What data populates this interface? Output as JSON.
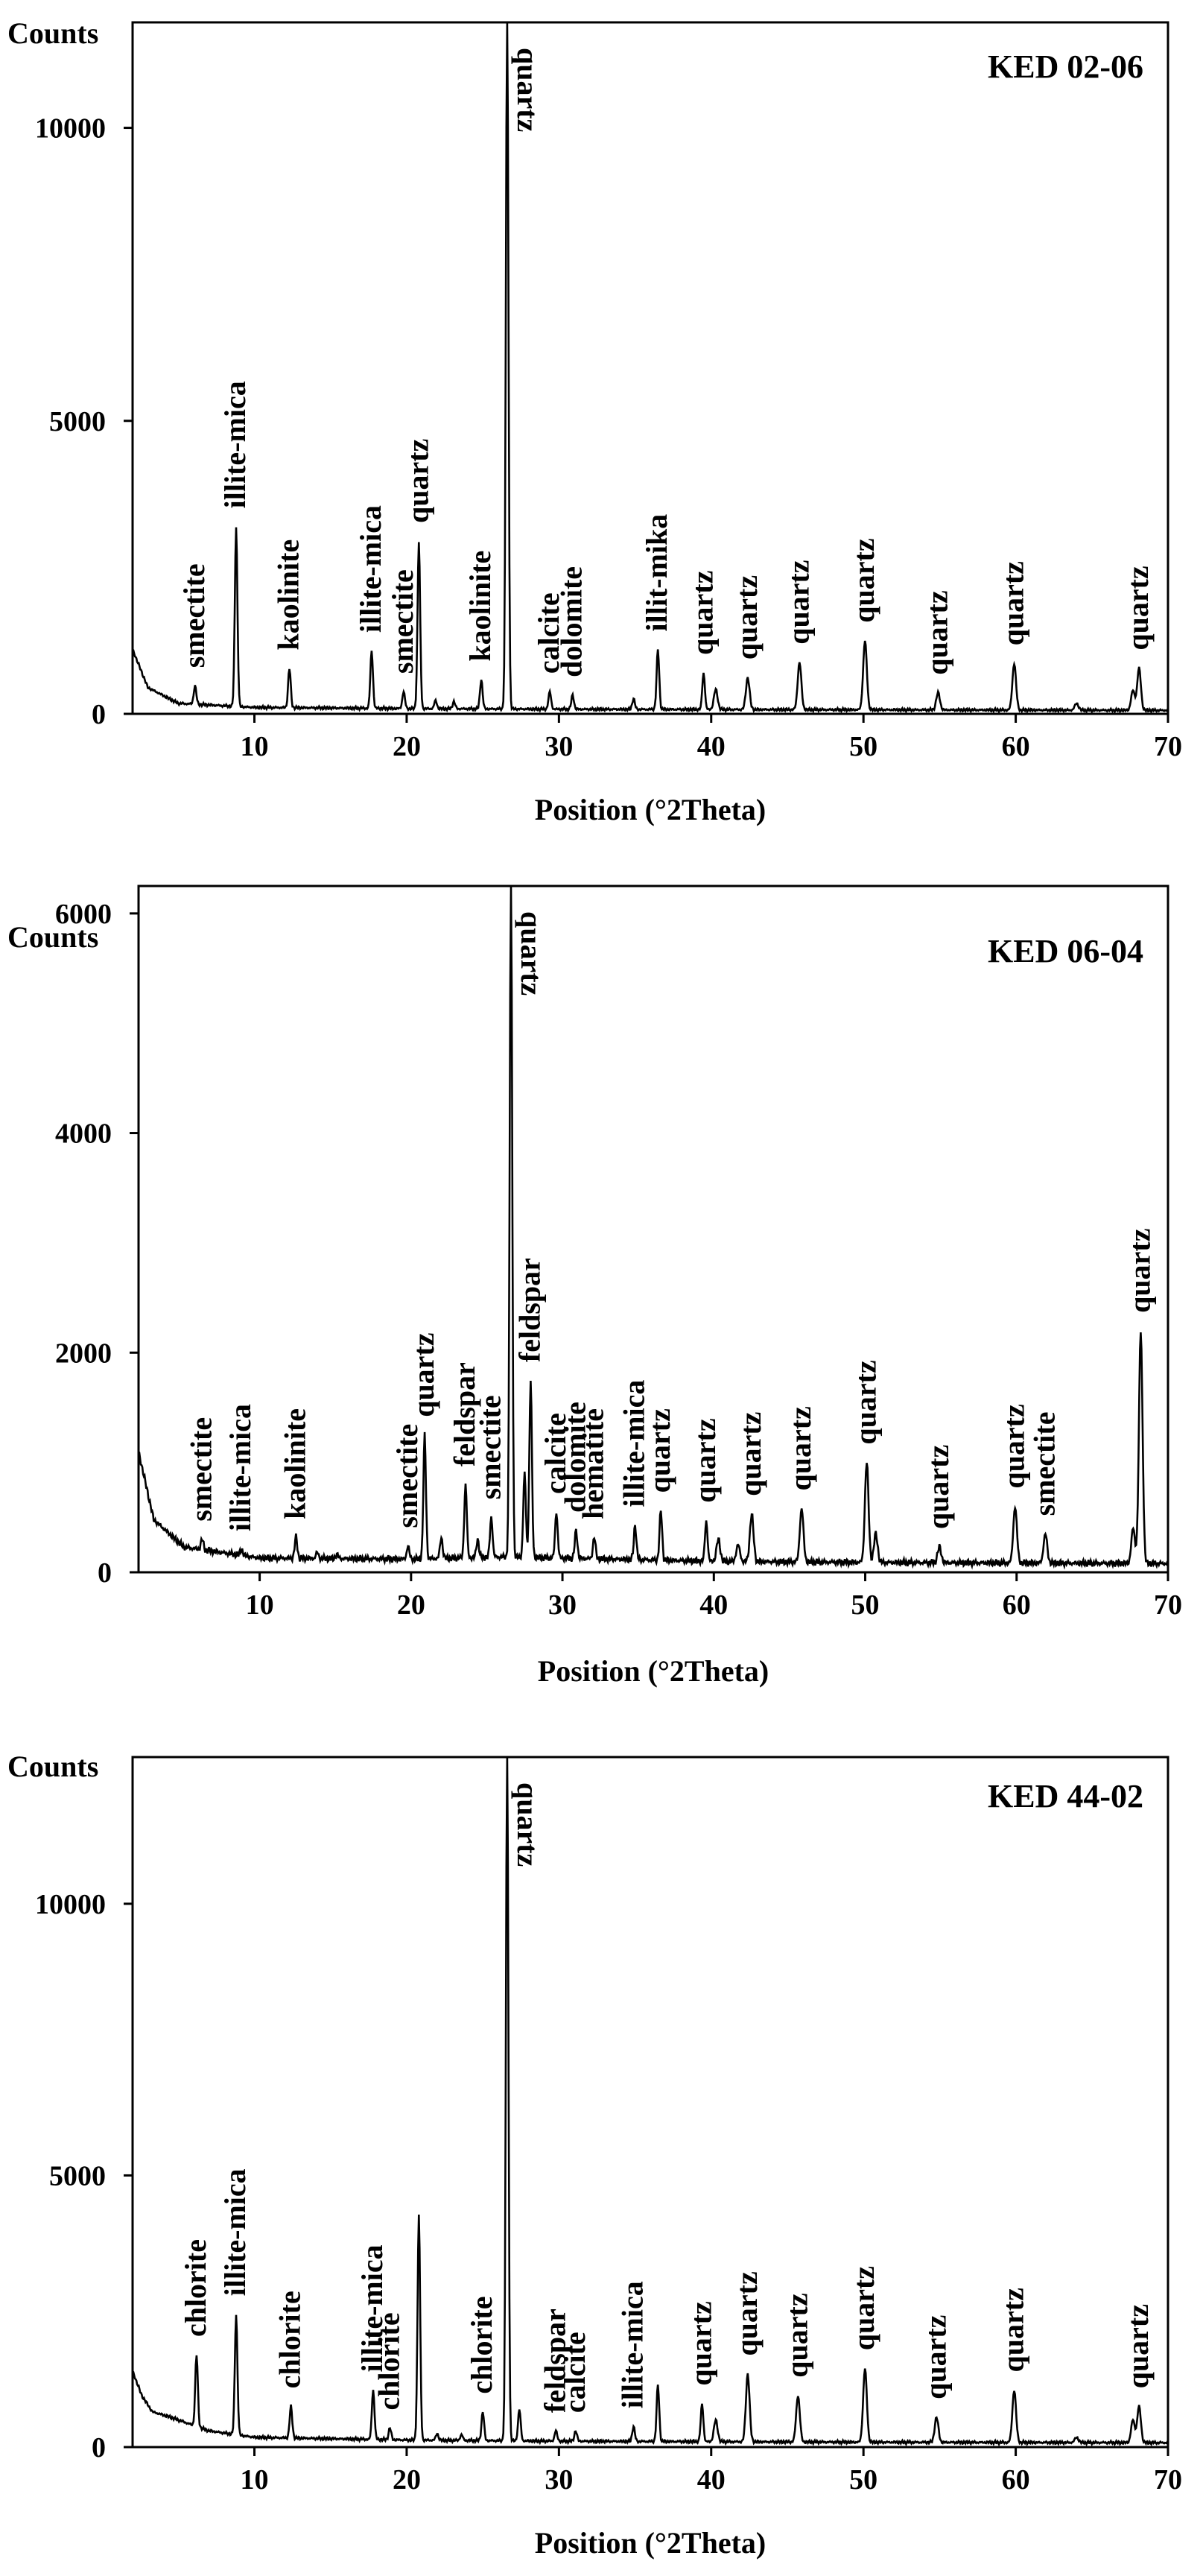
{
  "chart_data": [
    {
      "type": "line",
      "sample": "KED 02-06",
      "ylabel": "Counts",
      "xlabel": "Position (°2Theta)",
      "xlim": [
        2,
        70
      ],
      "ylim": [
        0,
        11800
      ],
      "xticks": [
        10,
        20,
        30,
        40,
        50,
        60,
        70
      ],
      "yticks": [
        0,
        5000,
        10000
      ],
      "baseline": 80,
      "background": [
        [
          2,
          1100
        ],
        [
          3,
          450
        ],
        [
          5,
          180
        ],
        [
          10,
          110
        ],
        [
          20,
          90
        ],
        [
          30,
          80
        ],
        [
          50,
          70
        ],
        [
          70,
          60
        ]
      ],
      "peaks": [
        {
          "x": 6.1,
          "y": 480,
          "label": "smectite"
        },
        {
          "x": 8.8,
          "y": 3200,
          "label": "illite-mica"
        },
        {
          "x": 12.3,
          "y": 780,
          "label": "kaolinite"
        },
        {
          "x": 17.7,
          "y": 1080,
          "label": "illite-mica"
        },
        {
          "x": 19.8,
          "y": 380,
          "label": "smectite"
        },
        {
          "x": 20.8,
          "y": 2950,
          "label": "quartz"
        },
        {
          "x": 24.9,
          "y": 590,
          "label": "kaolinite"
        },
        {
          "x": 26.6,
          "y": 11900,
          "label": "quartz"
        },
        {
          "x": 29.4,
          "y": 380,
          "label": "calcite"
        },
        {
          "x": 30.9,
          "y": 320,
          "label": "dolomite"
        },
        {
          "x": 36.5,
          "y": 1100,
          "label": "illit-mika"
        },
        {
          "x": 39.5,
          "y": 700,
          "label": "quartz"
        },
        {
          "x": 42.4,
          "y": 620,
          "label": "quartz"
        },
        {
          "x": 45.8,
          "y": 880,
          "label": "quartz"
        },
        {
          "x": 50.1,
          "y": 1250,
          "label": "quartz"
        },
        {
          "x": 54.9,
          "y": 360,
          "label": "quartz"
        },
        {
          "x": 59.9,
          "y": 860,
          "label": "quartz"
        },
        {
          "x": 68.1,
          "y": 780,
          "label": "quartz"
        },
        {
          "x": 67.7,
          "y": 400
        },
        {
          "x": 40.3,
          "y": 420
        },
        {
          "x": 21.9,
          "y": 230
        },
        {
          "x": 23.1,
          "y": 210
        },
        {
          "x": 34.9,
          "y": 260
        },
        {
          "x": 64.0,
          "y": 180
        }
      ]
    },
    {
      "type": "line",
      "sample": "KED 06-04",
      "ylabel": "Counts",
      "xlabel": "Position (°2Theta)",
      "xlim": [
        2,
        70
      ],
      "ylim": [
        0,
        6250
      ],
      "xticks": [
        10,
        20,
        30,
        40,
        50,
        60,
        70
      ],
      "yticks": [
        0,
        2000,
        4000,
        6000
      ],
      "baseline": 90,
      "background": [
        [
          2,
          1100
        ],
        [
          3,
          480
        ],
        [
          5,
          230
        ],
        [
          10,
          130
        ],
        [
          20,
          120
        ],
        [
          26,
          140
        ],
        [
          30,
          130
        ],
        [
          40,
          100
        ],
        [
          50,
          90
        ],
        [
          70,
          80
        ]
      ],
      "peaks": [
        {
          "x": 6.2,
          "y": 300,
          "label": "smectite"
        },
        {
          "x": 8.8,
          "y": 210,
          "label": "illite-mica"
        },
        {
          "x": 12.4,
          "y": 320,
          "label": "kaolinite"
        },
        {
          "x": 19.8,
          "y": 240,
          "label": "smectite"
        },
        {
          "x": 20.9,
          "y": 1250,
          "label": "quartz"
        },
        {
          "x": 23.6,
          "y": 800,
          "label": "feldspar"
        },
        {
          "x": 25.3,
          "y": 500,
          "label": "smectite"
        },
        {
          "x": 26.6,
          "y": 6250,
          "label": "quartz"
        },
        {
          "x": 27.9,
          "y": 1750,
          "label": "feldspar"
        },
        {
          "x": 29.6,
          "y": 550,
          "label": "calcite"
        },
        {
          "x": 30.9,
          "y": 380,
          "label": "dolomite"
        },
        {
          "x": 32.1,
          "y": 320,
          "label": "hematite"
        },
        {
          "x": 34.8,
          "y": 430,
          "label": "illite-mica"
        },
        {
          "x": 36.5,
          "y": 560,
          "label": "quartz"
        },
        {
          "x": 39.5,
          "y": 470,
          "label": "quartz"
        },
        {
          "x": 42.5,
          "y": 530,
          "label": "quartz"
        },
        {
          "x": 45.8,
          "y": 580,
          "label": "quartz"
        },
        {
          "x": 50.1,
          "y": 1000,
          "label": "quartz"
        },
        {
          "x": 54.9,
          "y": 230,
          "label": "quartz"
        },
        {
          "x": 59.9,
          "y": 600,
          "label": "quartz"
        },
        {
          "x": 61.9,
          "y": 350,
          "label": "smectite"
        },
        {
          "x": 68.2,
          "y": 2200,
          "label": "quartz"
        },
        {
          "x": 67.7,
          "y": 400
        },
        {
          "x": 50.7,
          "y": 350
        },
        {
          "x": 40.3,
          "y": 300
        },
        {
          "x": 22.0,
          "y": 320
        },
        {
          "x": 24.4,
          "y": 300
        },
        {
          "x": 27.5,
          "y": 900
        },
        {
          "x": 13.8,
          "y": 180
        },
        {
          "x": 15.1,
          "y": 160
        },
        {
          "x": 41.6,
          "y": 250
        }
      ]
    },
    {
      "type": "line",
      "sample": "KED 44-02",
      "ylabel": "Counts",
      "xlabel": "Position (°2Theta)",
      "xlim": [
        2,
        70
      ],
      "ylim": [
        0,
        12700
      ],
      "xticks": [
        10,
        20,
        30,
        40,
        50,
        60,
        70
      ],
      "yticks": [
        0,
        5000,
        10000
      ],
      "baseline": 90,
      "background": [
        [
          2,
          1400
        ],
        [
          2.6,
          950
        ],
        [
          3.3,
          650
        ],
        [
          4.5,
          550
        ],
        [
          5.5,
          450
        ],
        [
          7,
          300
        ],
        [
          10,
          180
        ],
        [
          20,
          130
        ],
        [
          30,
          110
        ],
        [
          50,
          90
        ],
        [
          70,
          80
        ]
      ],
      "peaks": [
        {
          "x": 6.2,
          "y": 1700,
          "label": "chlorite"
        },
        {
          "x": 8.8,
          "y": 2450,
          "label": "illite-mica"
        },
        {
          "x": 12.4,
          "y": 750,
          "label": "chlorite"
        },
        {
          "x": 17.8,
          "y": 1050,
          "label": "illite-mica"
        },
        {
          "x": 18.9,
          "y": 350,
          "label": "chlorite"
        },
        {
          "x": 20.8,
          "y": 4300
        },
        {
          "x": 25.0,
          "y": 650,
          "label": "chlorite"
        },
        {
          "x": 26.6,
          "y": 12700,
          "label": "quartz"
        },
        {
          "x": 29.8,
          "y": 300,
          "label": "feldspar"
        },
        {
          "x": 31.1,
          "y": 300,
          "label": "calcite"
        },
        {
          "x": 34.9,
          "y": 380,
          "label": "illite-mica"
        },
        {
          "x": 36.5,
          "y": 1150
        },
        {
          "x": 39.4,
          "y": 800,
          "label": "quartz"
        },
        {
          "x": 42.4,
          "y": 1350,
          "label": "quartz"
        },
        {
          "x": 45.7,
          "y": 950,
          "label": "quartz"
        },
        {
          "x": 50.1,
          "y": 1450,
          "label": "quartz"
        },
        {
          "x": 54.8,
          "y": 550,
          "label": "quartz"
        },
        {
          "x": 59.9,
          "y": 1050,
          "label": "quartz"
        },
        {
          "x": 68.1,
          "y": 750,
          "label": "quartz"
        },
        {
          "x": 67.7,
          "y": 500
        },
        {
          "x": 40.3,
          "y": 500
        },
        {
          "x": 27.4,
          "y": 700
        },
        {
          "x": 22.0,
          "y": 250
        },
        {
          "x": 23.6,
          "y": 230
        },
        {
          "x": 64.0,
          "y": 180
        }
      ]
    }
  ]
}
